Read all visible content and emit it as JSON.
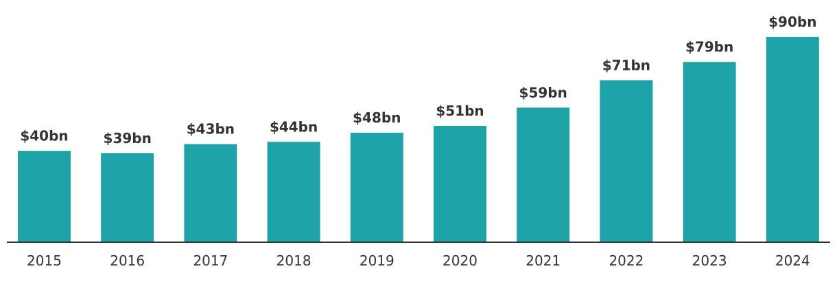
{
  "chart_data": {
    "type": "bar",
    "title": "",
    "xlabel": "",
    "ylabel": "",
    "categories": [
      "2015",
      "2016",
      "2017",
      "2018",
      "2019",
      "2020",
      "2021",
      "2022",
      "2023",
      "2024"
    ],
    "values": [
      40,
      39,
      43,
      44,
      48,
      51,
      59,
      71,
      79,
      90
    ],
    "value_labels": [
      "$40bn",
      "$39bn",
      "$43bn",
      "$44bn",
      "$48bn",
      "$51bn",
      "$59bn",
      "$71bn",
      "$79bn",
      "$90bn"
    ],
    "ylim": [
      0,
      90
    ],
    "grid": false,
    "bar_color": "#1ea3a8",
    "text_color": "#333333",
    "axis_color": "#333333"
  }
}
